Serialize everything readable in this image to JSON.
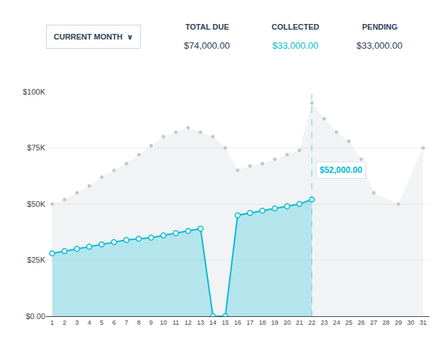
{
  "chart_data": {
    "type": "area",
    "header": {
      "dropdown": "CURRENT MONTH  ∨",
      "stats": [
        {
          "label": "TOTAL DUE",
          "value": "$74,000.00",
          "color": "#2d4059"
        },
        {
          "label": "COLLECTED",
          "value": "$33,000.00",
          "color": "#00bcd4"
        },
        {
          "label": "PENDING",
          "value": "$33,000.00",
          "color": "#2d4059"
        }
      ]
    },
    "x": [
      1,
      2,
      3,
      4,
      5,
      6,
      7,
      8,
      9,
      10,
      11,
      12,
      13,
      14,
      15,
      16,
      17,
      18,
      19,
      20,
      21,
      22,
      23,
      24,
      25,
      26,
      27,
      28,
      29,
      30,
      31
    ],
    "series": [
      {
        "type": "area",
        "color": "#b0bec5",
        "marker": "dot",
        "line_style": "none",
        "values": [
          50000,
          52000,
          55000,
          58000,
          62000,
          65000,
          68000,
          72000,
          76000,
          80000,
          82000,
          84000,
          82000,
          80000,
          75000,
          65000,
          67000,
          68000,
          70000,
          72000,
          74000,
          95000,
          88000,
          82000,
          78000,
          70000,
          55000,
          null,
          50000,
          null,
          75000
        ]
      },
      {
        "type": "area",
        "color": "#00bcd4",
        "marker": "circle",
        "line_style": "solid",
        "values": [
          28000,
          29000,
          30000,
          31000,
          32000,
          33000,
          34000,
          34500,
          35000,
          36000,
          37000,
          38000,
          39000,
          0,
          0,
          45000,
          46000,
          47000,
          48000,
          49000,
          50000,
          52000,
          null,
          null,
          null,
          null,
          null,
          null,
          null,
          null,
          null
        ]
      }
    ],
    "vline": 22,
    "annotations": [
      {
        "text": "$52,000.00",
        "x": 22,
        "y": 52000,
        "color": "#00bcd4"
      }
    ],
    "xlim": [
      0.5,
      31.5
    ],
    "xticks": [
      1,
      2,
      3,
      4,
      5,
      6,
      7,
      8,
      9,
      10,
      11,
      12,
      13,
      14,
      15,
      16,
      17,
      18,
      19,
      20,
      21,
      22,
      23,
      24,
      25,
      26,
      27,
      28,
      29,
      30,
      31
    ],
    "ylim": [
      0,
      100000
    ],
    "yticks": [
      {
        "value": 0,
        "label": "$0.00"
      },
      {
        "value": 25000,
        "label": "$25K"
      },
      {
        "value": 50000,
        "label": "$50K"
      },
      {
        "value": 75000,
        "label": "$75K"
      },
      {
        "value": 100000,
        "label": "$100K"
      }
    ],
    "grid": "y"
  }
}
